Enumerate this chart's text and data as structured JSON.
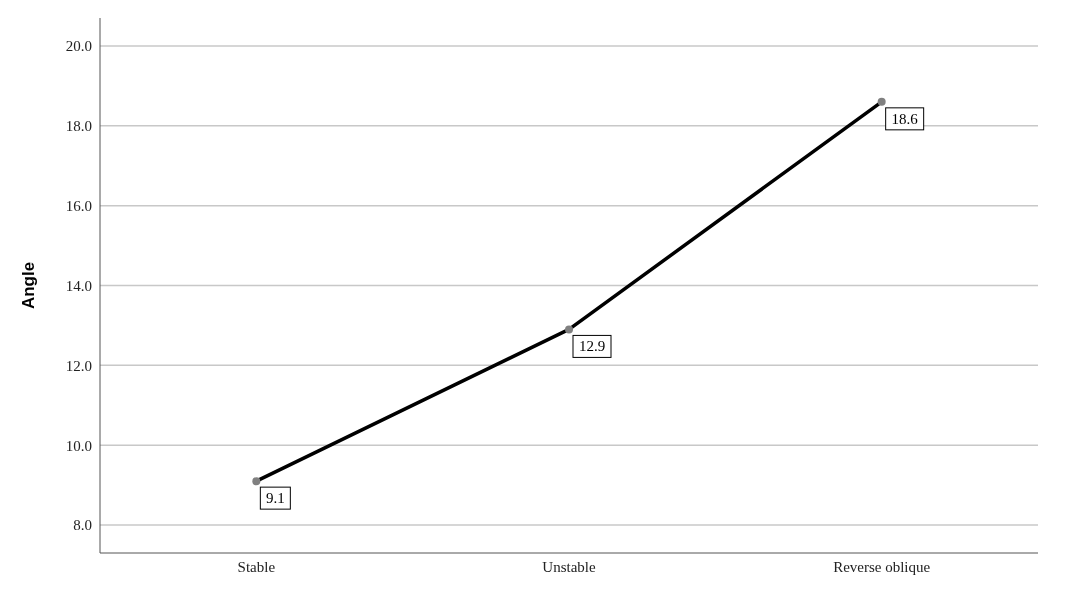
{
  "chart_data": {
    "type": "line",
    "ylabel": "Angle",
    "categories": [
      "Stable",
      "Unstable",
      "Reverse oblique"
    ],
    "series": [
      {
        "color": "#000000",
        "values": [
          9.1,
          12.9,
          18.6
        ]
      }
    ],
    "ylim": [
      7.3,
      20.7
    ],
    "yticks": [
      {
        "value": 8,
        "label": "8.0"
      },
      {
        "value": 10,
        "label": "10.0"
      },
      {
        "value": 12,
        "label": "12.0"
      },
      {
        "value": 14,
        "label": "14.0"
      },
      {
        "value": 16,
        "label": "16.0"
      },
      {
        "value": 18,
        "label": "18.0"
      },
      {
        "value": 20,
        "label": "20.0"
      }
    ],
    "grid": "y",
    "marker": "circle",
    "data_labels": true,
    "legend": false
  }
}
